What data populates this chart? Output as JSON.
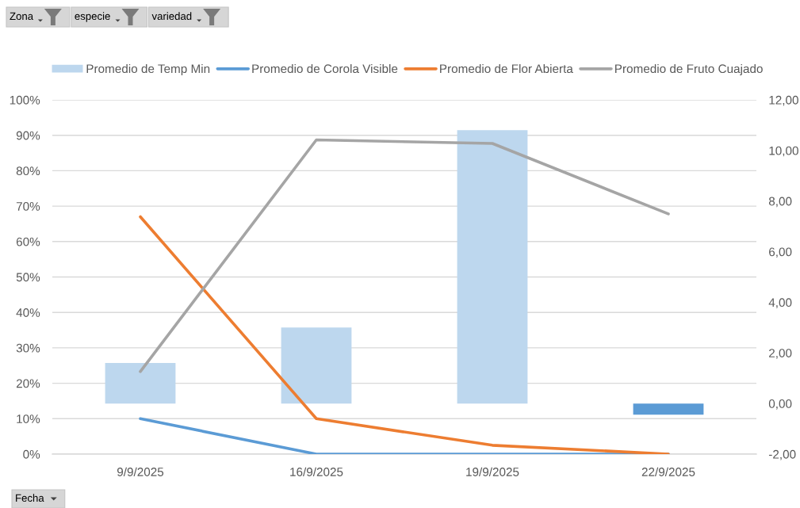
{
  "chart_data": {
    "type": "bar",
    "annotations": [
      "Zona",
      "especie",
      "variedad"
    ],
    "xlabel": "Fecha",
    "categories": [
      "9/9/2025",
      "16/9/2025",
      "19/9/2025",
      "22/9/2025"
    ],
    "series": [
      {
        "name": "Promedio de Temp Min",
        "type": "bar",
        "axis": "y2",
        "color": "#bdd7ee",
        "colors": [
          "#bdd7ee",
          "#bdd7ee",
          "#bdd7ee",
          "#5b9bd5"
        ],
        "values": [
          1.6,
          3.0,
          10.8,
          -0.44
        ]
      },
      {
        "name": "Promedio de Corola Visible",
        "type": "line",
        "color": "#5b9bd5",
        "values": [
          10,
          0,
          0,
          0
        ]
      },
      {
        "name": "Promedio de Flor Abierta",
        "type": "line",
        "color": "#ed7d31",
        "values": [
          67,
          10,
          2.5,
          0
        ]
      },
      {
        "name": "Promedio de Fruto Cuajado",
        "type": "line",
        "color": "#a5a5a5",
        "values": [
          23.3,
          88.7,
          87.7,
          67.8
        ]
      }
    ],
    "ylim": [
      0,
      100
    ],
    "yticks": [
      {
        "value": 0,
        "label": "0%"
      },
      {
        "value": 10,
        "label": "10%"
      },
      {
        "value": 20,
        "label": "20%"
      },
      {
        "value": 30,
        "label": "30%"
      },
      {
        "value": 40,
        "label": "40%"
      },
      {
        "value": 50,
        "label": "50%"
      },
      {
        "value": 60,
        "label": "60%"
      },
      {
        "value": 70,
        "label": "70%"
      },
      {
        "value": 80,
        "label": "80%"
      },
      {
        "value": 90,
        "label": "90%"
      },
      {
        "value": 100,
        "label": "100%"
      }
    ],
    "y2lim": [
      -2,
      12
    ],
    "y2ticks": [
      {
        "value": -2,
        "label": "-2,00"
      },
      {
        "value": 0,
        "label": "0,00"
      },
      {
        "value": 2,
        "label": "2,00"
      },
      {
        "value": 4,
        "label": "4,00"
      },
      {
        "value": 6,
        "label": "6,00"
      },
      {
        "value": 8,
        "label": "8,00"
      },
      {
        "value": 10,
        "label": "10,00"
      },
      {
        "value": 12,
        "label": "12,00"
      }
    ],
    "grid": "y",
    "legend": "top",
    "line_style": "solid"
  }
}
